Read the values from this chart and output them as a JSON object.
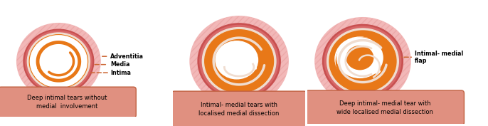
{
  "background_color": "#ffffff",
  "adventitia_color": "#f2b8b8",
  "adventitia_hatch_color": "#e89090",
  "media_outer_color": "#c85050",
  "media_inner_color": "#d86060",
  "intima_ring_color": "#f0ddd0",
  "orange_color": "#e87818",
  "orange_light": "#f0a060",
  "white_color": "#ffffff",
  "dashed_color": "#cc6633",
  "box_fill": "#e09080",
  "box_edge": "#c06040",
  "label_color": "#000000",
  "labels_1": [
    "Adventitia",
    "Media",
    "Intima"
  ],
  "label_3": "Intimal- medial\nflap",
  "caption_1": "Deep intimal tears without\nmedial  involvement",
  "caption_2": "Intimal- medial tears with\nlocalised medial dissection",
  "caption_3": "Deep intimal- medial tear with\nwide localised medial dissection"
}
